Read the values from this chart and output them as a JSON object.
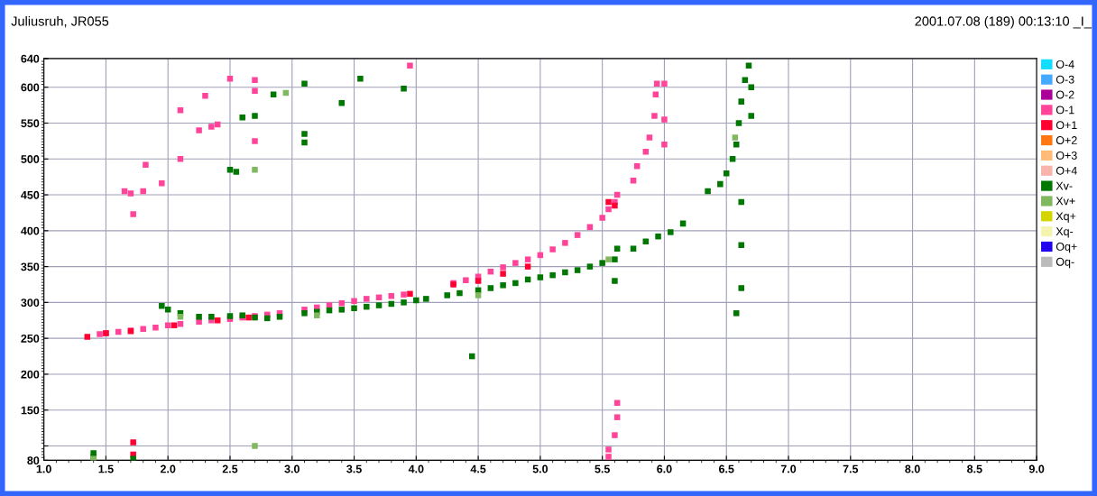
{
  "chart_data": {
    "type": "scatter",
    "title": "Juliusruh, JR055",
    "subtitle": "2001.07.08 (189) 00:13:10 _I_",
    "xlim": [
      1.0,
      9.0
    ],
    "ylim": [
      80,
      640
    ],
    "xticks": [
      {
        "value": 1,
        "label": "1.0"
      },
      1.5,
      {
        "value": 2,
        "label": "2.0"
      },
      2.5,
      {
        "value": 3,
        "label": "3.0"
      },
      3.5,
      {
        "value": 4,
        "label": "4.0"
      },
      4.5,
      {
        "value": 5,
        "label": "5.0"
      },
      5.5,
      {
        "value": 6,
        "label": "6.0"
      },
      6.5,
      {
        "value": 7,
        "label": "7.0"
      },
      7.5,
      {
        "value": 8,
        "label": "8.0"
      },
      8.5,
      {
        "value": 9,
        "label": "9.0"
      }
    ],
    "yticks": [
      80,
      {
        "value": 100,
        "label": null
      },
      150,
      200,
      250,
      300,
      350,
      400,
      450,
      500,
      550,
      600,
      640
    ],
    "grid": true,
    "legend": "right",
    "marker": "square",
    "series": [
      {
        "name": "O-4",
        "color": "#11ddff"
      },
      {
        "name": "O-3",
        "color": "#44aaff"
      },
      {
        "name": "O-2",
        "color": "#aa0099"
      },
      {
        "name": "O-1",
        "color": "#ff4499",
        "x": [
          1.45,
          1.5,
          1.6,
          1.7,
          1.8,
          1.9,
          2.0,
          2.1,
          2.25,
          2.35,
          2.5,
          2.6,
          2.7,
          2.8,
          2.9,
          3.1,
          3.2,
          3.3,
          3.4,
          3.5,
          3.6,
          3.7,
          3.8,
          3.9,
          4.3,
          4.4,
          4.5,
          4.6,
          4.7,
          4.8,
          4.9,
          5.0,
          5.1,
          5.2,
          5.3,
          5.4,
          5.5,
          5.55,
          5.6,
          5.62,
          5.75,
          5.78,
          5.85,
          5.88,
          5.92,
          5.93,
          5.94,
          6.0,
          6.0,
          6.0,
          1.65,
          1.7,
          1.8,
          1.72,
          1.95,
          1.82,
          2.1,
          2.1,
          2.25,
          2.35,
          2.4,
          2.3,
          2.5,
          2.7,
          2.7,
          2.7,
          3.95,
          5.55,
          5.6,
          5.62,
          5.62,
          5.55
        ],
        "values": [
          256,
          257,
          259,
          261,
          263,
          265,
          268,
          270,
          273,
          275,
          277,
          279,
          281,
          283,
          285,
          290,
          293,
          296,
          299,
          302,
          305,
          307,
          309,
          311,
          327,
          331,
          336,
          343,
          349,
          355,
          360,
          366,
          374,
          383,
          394,
          405,
          418,
          430,
          440,
          450,
          470,
          490,
          510,
          530,
          560,
          590,
          605,
          520,
          555,
          605,
          455,
          452,
          455,
          423,
          466,
          492,
          500,
          568,
          540,
          545,
          548,
          588,
          612,
          610,
          595,
          525,
          630,
          95,
          115,
          140,
          160,
          85
        ]
      },
      {
        "name": "O+1",
        "color": "#ff0033",
        "x": [
          1.35,
          1.5,
          1.7,
          2.05,
          2.4,
          2.65,
          3.95,
          4.3,
          4.5,
          4.7,
          4.9,
          5.55,
          5.6,
          1.72,
          1.72
        ],
        "values": [
          252,
          257,
          260,
          268,
          275,
          279,
          312,
          325,
          330,
          340,
          350,
          440,
          435,
          88,
          105
        ]
      },
      {
        "name": "O+2",
        "color": "#ff7711"
      },
      {
        "name": "O+3",
        "color": "#ffbb77"
      },
      {
        "name": "O+4",
        "color": "#f8b4aa"
      },
      {
        "name": "Xv-",
        "color": "#007700",
        "x": [
          1.95,
          2.0,
          2.1,
          2.25,
          2.35,
          2.5,
          2.6,
          2.7,
          2.8,
          2.9,
          3.1,
          3.2,
          3.3,
          3.4,
          3.5,
          3.6,
          3.7,
          3.8,
          3.9,
          4.0,
          4.08,
          4.25,
          4.35,
          4.5,
          4.6,
          4.7,
          4.8,
          4.9,
          5.0,
          5.1,
          5.2,
          5.3,
          5.4,
          5.5,
          5.6,
          5.62,
          5.6,
          5.75,
          5.85,
          5.95,
          6.05,
          6.15,
          6.35,
          6.45,
          6.5,
          6.55,
          6.58,
          6.6,
          6.62,
          6.65,
          6.68,
          6.7,
          6.7,
          2.6,
          2.7,
          2.85,
          3.4,
          3.1,
          3.55,
          3.9,
          3.1,
          3.1,
          2.5,
          2.55,
          1.4,
          1.4,
          1.72,
          6.58,
          6.62,
          6.62,
          6.62,
          4.45
        ],
        "values": [
          295,
          290,
          285,
          280,
          280,
          281,
          282,
          279,
          278,
          280,
          285,
          287,
          289,
          290,
          292,
          294,
          296,
          298,
          300,
          303,
          305,
          310,
          313,
          317,
          320,
          324,
          327,
          332,
          335,
          338,
          342,
          345,
          350,
          355,
          360,
          375,
          330,
          375,
          385,
          392,
          398,
          410,
          455,
          465,
          480,
          500,
          520,
          550,
          580,
          610,
          630,
          600,
          560,
          558,
          560,
          590,
          578,
          605,
          612,
          598,
          535,
          523,
          485,
          482,
          90,
          85,
          82,
          285,
          320,
          380,
          440,
          225
        ]
      },
      {
        "name": "Xv+",
        "color": "#80b860",
        "x": [
          2.95,
          2.7,
          2.7,
          1.4,
          2.1,
          3.2,
          4.5,
          5.55,
          6.57
        ],
        "values": [
          592,
          485,
          100,
          82,
          280,
          282,
          310,
          360,
          530
        ]
      },
      {
        "name": "Xq+",
        "color": "#d4d400"
      },
      {
        "name": "Xq-",
        "color": "#f4f4b0"
      },
      {
        "name": "Oq+",
        "color": "#2200ee"
      },
      {
        "name": "Oq-",
        "color": "#bbbbbb"
      }
    ]
  }
}
